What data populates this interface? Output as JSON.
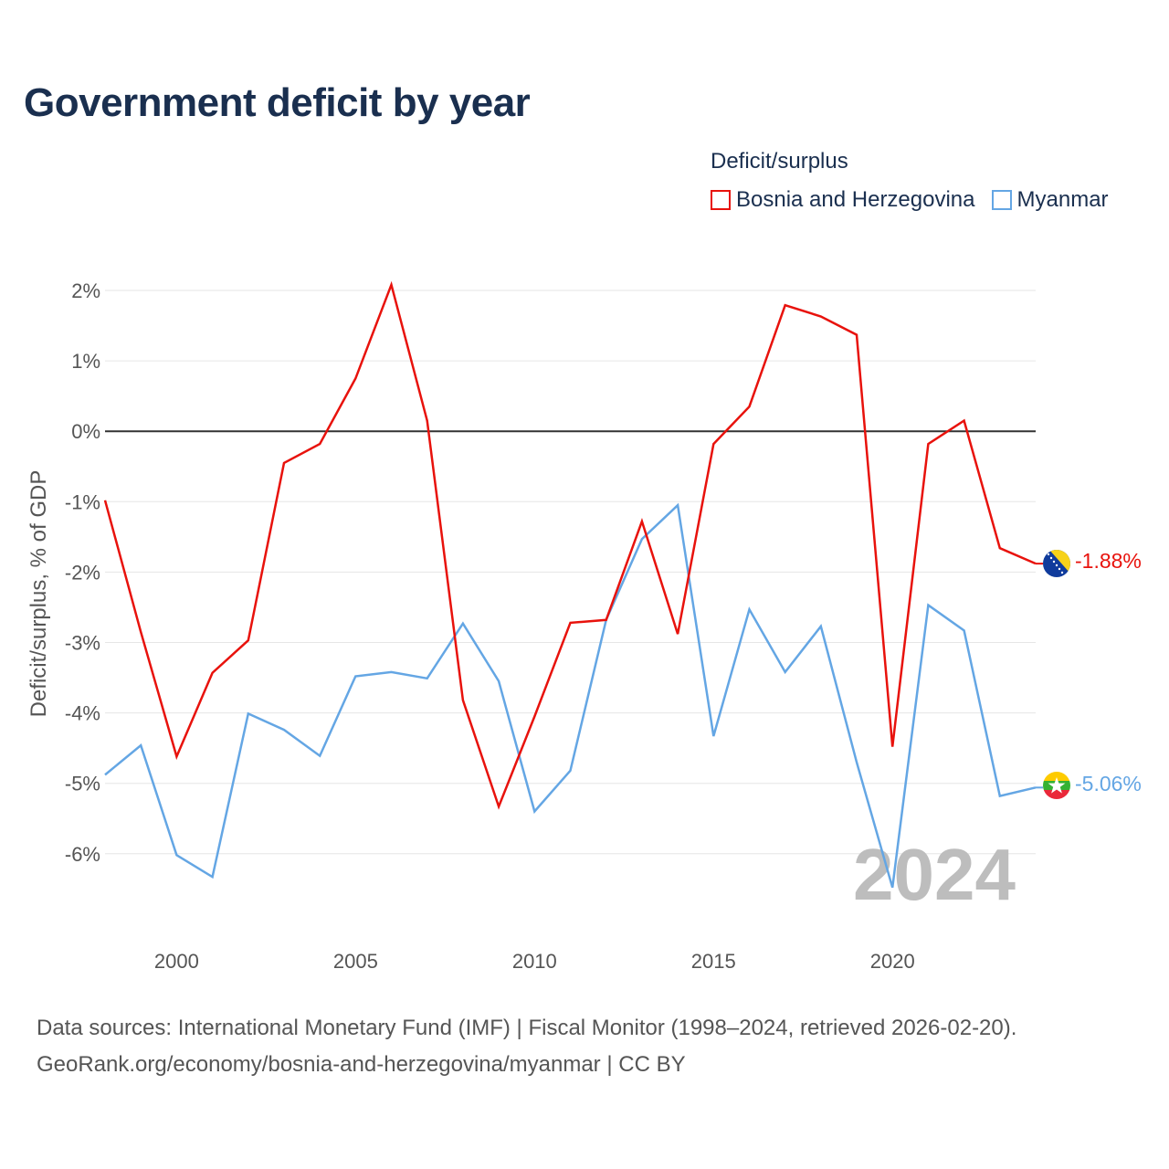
{
  "page": {
    "title": "Government deficit by year",
    "source_line1": "Data sources: International Monetary Fund (IMF) | Fiscal Monitor (1998–2024, retrieved 2026-02-20).",
    "source_line2": "GeoRank.org/economy/bosnia-and-herzegovina/myanmar | CC BY"
  },
  "legend": {
    "title": "Deficit/surplus",
    "items": [
      {
        "label": "Bosnia and Herzegovina",
        "color": "#e8120c"
      },
      {
        "label": "Myanmar",
        "color": "#64a6e4"
      }
    ]
  },
  "chart_data": {
    "type": "line",
    "title": "Government deficit by year",
    "xlabel": "",
    "ylabel": "Deficit/surplus, % of GDP",
    "xlim": [
      1998,
      2024
    ],
    "ylim": [
      -6.8,
      2.2
    ],
    "x_ticks": [
      2000,
      2005,
      2010,
      2015,
      2020
    ],
    "y_ticks": [
      2,
      1,
      0,
      -1,
      -2,
      -3,
      -4,
      -5,
      -6
    ],
    "y_tick_labels": [
      "2%",
      "1%",
      "0%",
      "-1%",
      "-2%",
      "-3%",
      "-4%",
      "-5%",
      "-6%"
    ],
    "grid": true,
    "zero_line": true,
    "watermark_year": "2024",
    "x": [
      1998,
      1999,
      2000,
      2001,
      2002,
      2003,
      2004,
      2005,
      2006,
      2007,
      2008,
      2009,
      2010,
      2011,
      2012,
      2013,
      2014,
      2015,
      2016,
      2017,
      2018,
      2019,
      2020,
      2021,
      2022,
      2023,
      2024
    ],
    "series": [
      {
        "name": "Bosnia and Herzegovina",
        "color": "#e8120c",
        "end_label": "-1.88%",
        "values": [
          -0.98,
          -2.85,
          -4.62,
          -3.43,
          -2.97,
          -0.45,
          -0.18,
          0.75,
          2.08,
          0.15,
          -3.82,
          -5.33,
          -4.05,
          -2.72,
          -2.68,
          -1.28,
          -2.88,
          -0.18,
          0.35,
          1.79,
          1.63,
          1.37,
          -4.48,
          -0.18,
          0.15,
          -1.66,
          -1.88
        ]
      },
      {
        "name": "Myanmar",
        "color": "#64a6e4",
        "end_label": "-5.06%",
        "values": [
          -4.88,
          -4.46,
          -6.02,
          -6.33,
          -4.01,
          -4.24,
          -4.61,
          -3.48,
          -3.42,
          -3.51,
          -2.73,
          -3.55,
          -5.4,
          -4.82,
          -2.68,
          -1.53,
          -1.05,
          -4.33,
          -2.53,
          -3.42,
          -2.77,
          -4.7,
          -6.48,
          -2.47,
          -2.83,
          -5.18,
          -5.06
        ]
      }
    ]
  }
}
